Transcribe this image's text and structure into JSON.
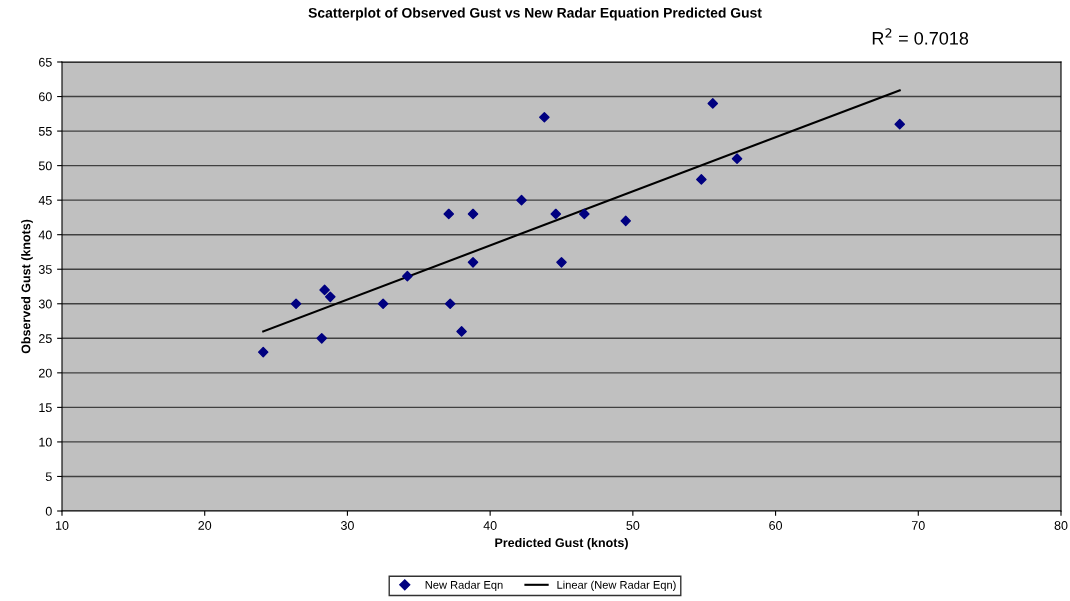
{
  "chart_data": {
    "type": "scatter",
    "title": "Scatterplot of Observed Gust vs New Radar Equation Predicted Gust",
    "xlabel": "Predicted Gust (knots)",
    "ylabel": "Observed Gust (knots)",
    "annotations": [
      "R$^{2}$ = 0.7018"
    ],
    "series": [
      {
        "name": "New Radar Eqn",
        "color": "#000080",
        "marker": "diamond",
        "x": [
          24.1,
          26.4,
          28.2,
          28.4,
          28.8,
          32.5,
          34.2,
          37.1,
          37.2,
          38.0,
          38.8,
          38.8,
          42.2,
          43.8,
          44.6,
          45.0,
          46.6,
          49.5,
          54.8,
          55.6,
          57.3,
          68.7
        ],
        "values": [
          23,
          30,
          25,
          32,
          31,
          30,
          34,
          43,
          30,
          26,
          36,
          43,
          45,
          57,
          43,
          36,
          43,
          42,
          48,
          59,
          51,
          56
        ]
      },
      {
        "name": "Linear (New Radar Eqn)",
        "type": "line",
        "color": "#000000",
        "marker": "none",
        "line_style": "solid",
        "x": [
          24.1,
          68.7
        ],
        "values": [
          26.0,
          60.9
        ]
      }
    ],
    "xlim": [
      10,
      80
    ],
    "xticks": [
      10,
      20,
      30,
      40,
      50,
      60,
      70,
      80
    ],
    "ylim": [
      0,
      65
    ],
    "yticks": [
      0,
      5,
      10,
      15,
      20,
      25,
      30,
      35,
      40,
      45,
      50,
      55,
      60,
      65
    ],
    "grid": "y",
    "legend": "bottom"
  }
}
